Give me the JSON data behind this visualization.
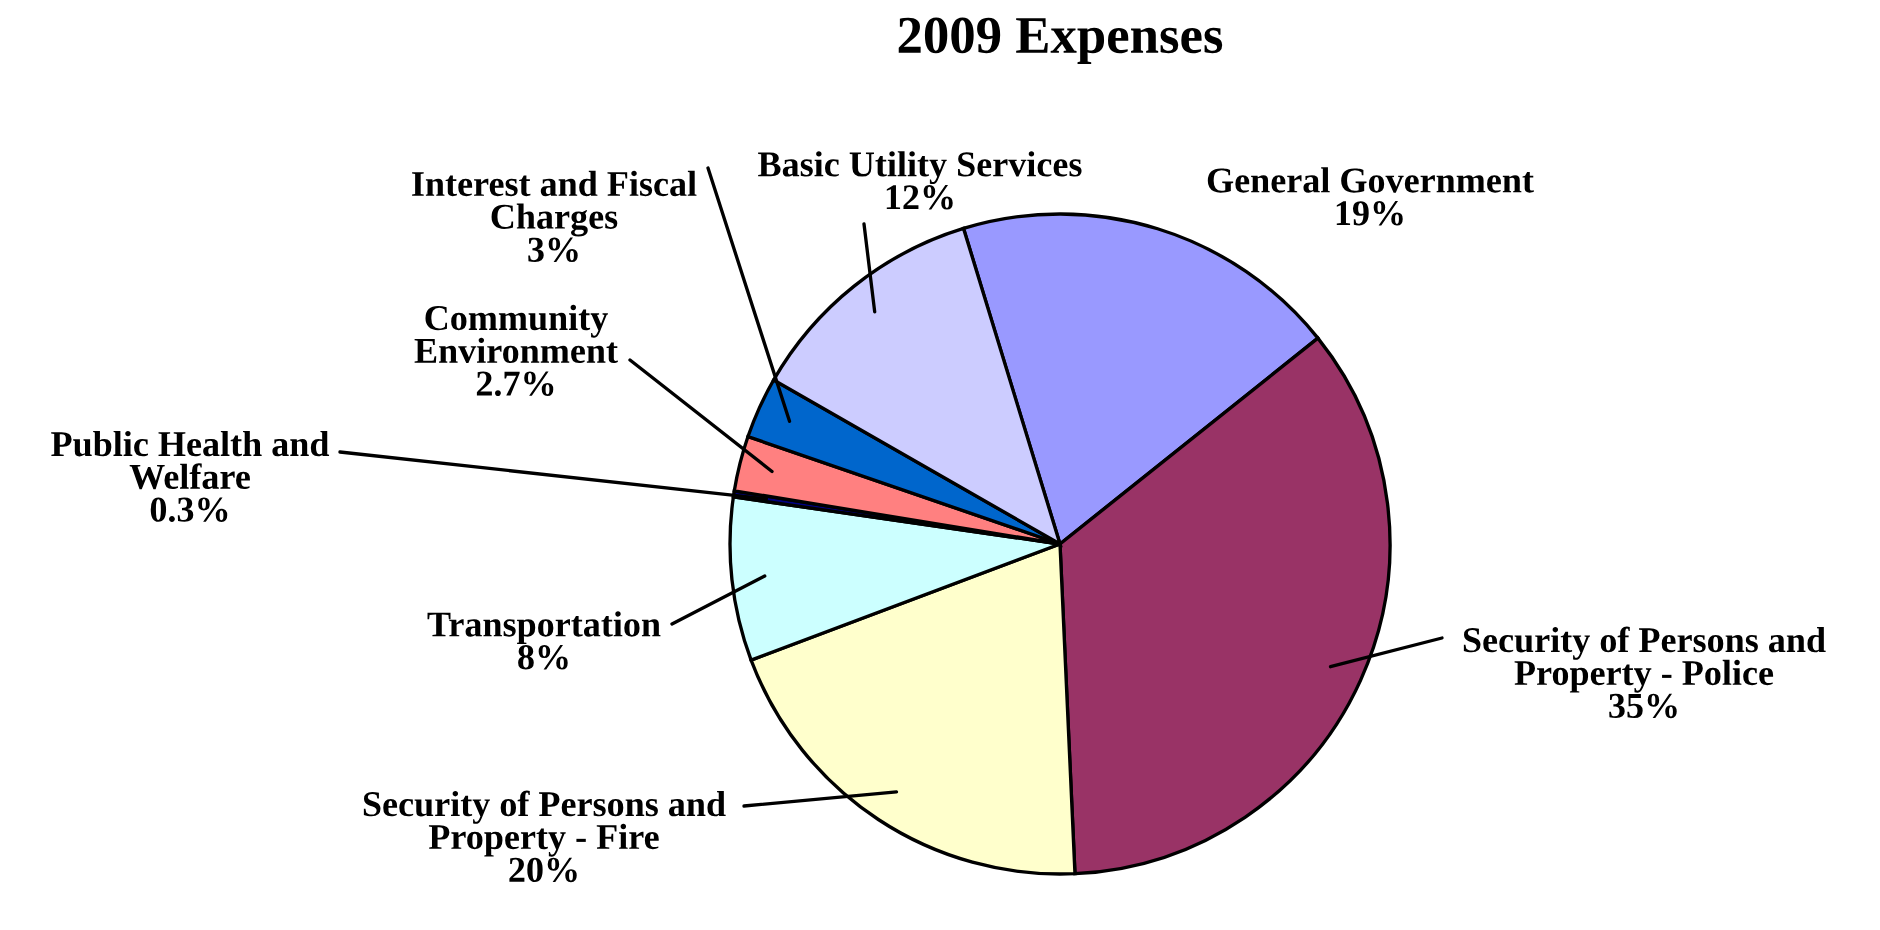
{
  "chart_data": {
    "type": "pie",
    "title": "2009 Expenses",
    "categories": [
      "General Government",
      "Security of Persons and Property - Police",
      "Security of Persons and Property - Fire",
      "Transportation",
      "Public Health and Welfare",
      "Community Environment",
      "Interest and Fiscal Charges",
      "Basic Utility Services"
    ],
    "values": [
      19,
      35,
      20,
      8,
      0.3,
      2.7,
      3,
      12
    ],
    "colors": [
      "#9999ff",
      "#993366",
      "#ffffcc",
      "#ccffff",
      "#000080",
      "#ff8080",
      "#0066cc",
      "#ccccff"
    ],
    "value_labels": [
      "19%",
      "35%",
      "20%",
      "8%",
      "0.3%",
      "2.7%",
      "3%",
      "12%"
    ],
    "legend": false
  }
}
